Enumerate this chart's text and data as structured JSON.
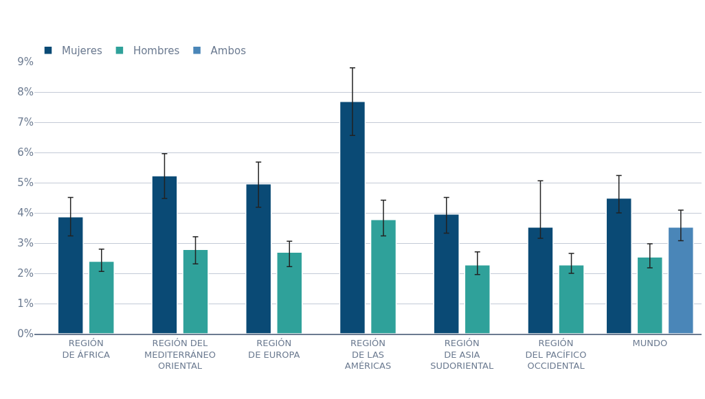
{
  "chart_data": {
    "type": "bar",
    "categories": [
      "REGIÓN\nDE ÁFRICA",
      "REGIÓN DEL\nMEDITERRÁNEO\nORIENTAL",
      "REGIÓN\nDE EUROPA",
      "REGIÓN\nDE LAS\nAMÉRICAS",
      "REGIÓN\nDE ASIA\nSUDORIENTAL",
      "REGIÓN\nDEL PACÍFICO\nOCCIDENTAL",
      "MUNDO"
    ],
    "series": [
      {
        "name": "Mujeres",
        "color": "#0a4a75",
        "values": [
          3.87,
          5.23,
          4.96,
          7.69,
          3.96,
          3.53,
          4.49
        ],
        "errors": [
          [
            3.24,
            4.51
          ],
          [
            4.48,
            5.96
          ],
          [
            4.19,
            5.68
          ],
          [
            6.56,
            8.8
          ],
          [
            3.33,
            4.51
          ],
          [
            3.16,
            5.06
          ],
          [
            4.0,
            5.24
          ]
        ]
      },
      {
        "name": "Hombres",
        "color": "#2fa19a",
        "values": [
          2.4,
          2.79,
          2.7,
          3.78,
          2.28,
          2.28,
          2.54
        ],
        "errors": [
          [
            2.06,
            2.8
          ],
          [
            2.31,
            3.21
          ],
          [
            2.22,
            3.06
          ],
          [
            3.24,
            4.42
          ],
          [
            1.96,
            2.71
          ],
          [
            2.0,
            2.66
          ],
          [
            2.18,
            2.98
          ]
        ]
      },
      {
        "name": "Ambos",
        "color": "#4a86b8",
        "values": [
          null,
          null,
          null,
          null,
          null,
          null,
          3.53
        ],
        "errors": [
          null,
          null,
          null,
          null,
          null,
          null,
          [
            3.08,
            4.09
          ]
        ]
      }
    ],
    "ylim": [
      0,
      9
    ],
    "yticks": [
      {
        "value": 0,
        "label": "0%"
      },
      {
        "value": 1,
        "label": "1%"
      },
      {
        "value": 2,
        "label": "2%"
      },
      {
        "value": 3,
        "label": "3%"
      },
      {
        "value": 4,
        "label": "4%"
      },
      {
        "value": 5,
        "label": "5%"
      },
      {
        "value": 6,
        "label": "6%"
      },
      {
        "value": 7,
        "label": "7%"
      },
      {
        "value": 8,
        "label": "8%"
      },
      {
        "value": 9,
        "label": "9%"
      }
    ],
    "grid": "y",
    "legend": "top left"
  }
}
